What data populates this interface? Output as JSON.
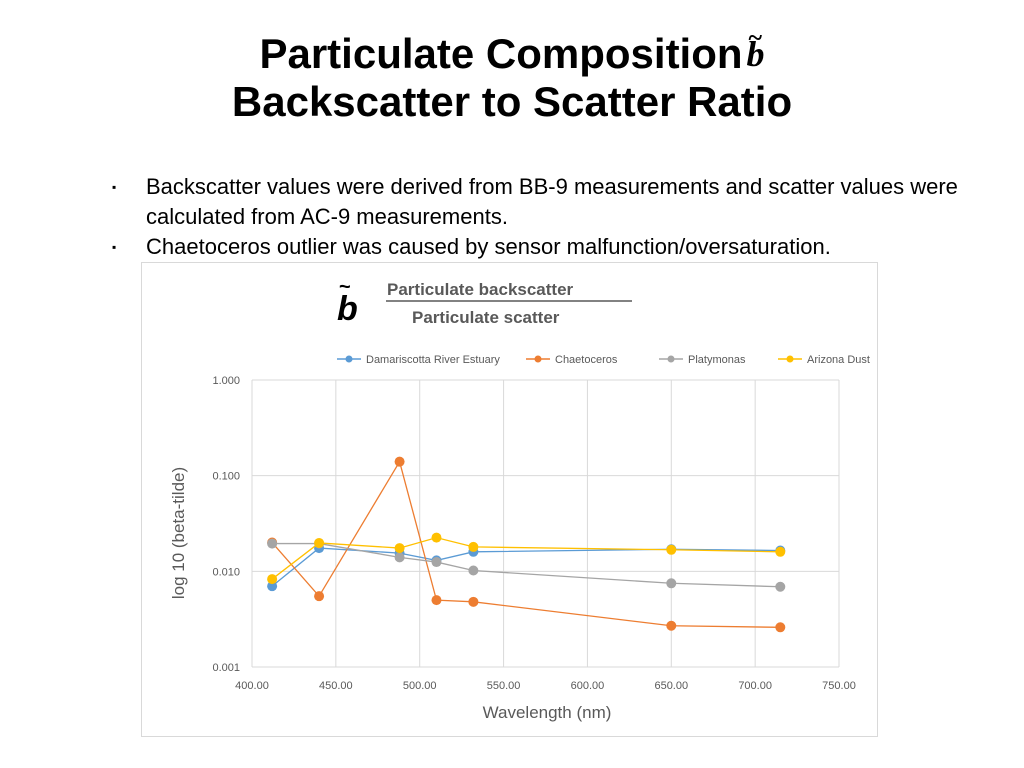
{
  "slide": {
    "title_line1": "Particulate Composition",
    "title_line2": "Backscatter to Scatter Ratio",
    "title_symbol": "b",
    "bullets": [
      "Backscatter values were derived from BB-9 measurements and scatter values were calculated from AC-9 measurements.",
      "Chaetoceros outlier was caused by sensor malfunction/oversaturation."
    ],
    "bullet_marker": "▪"
  },
  "chart_data": {
    "type": "line",
    "title_symbol": "b",
    "title_numerator": "Particulate  backscatter",
    "title_denominator": "Particulate  scatter",
    "xlabel": "Wavelength (nm)",
    "ylabel": "log 10 (beta-tilde)",
    "xlim": [
      400,
      750
    ],
    "ylim": [
      0.001,
      1
    ],
    "yscale": "log",
    "xticks": [
      "400.00",
      "450.00",
      "500.00",
      "550.00",
      "600.00",
      "650.00",
      "700.00",
      "750.00"
    ],
    "yticks": [
      "0.001",
      "0.010",
      "0.100",
      "1.000"
    ],
    "grid": true,
    "legend_position": "top",
    "series": [
      {
        "name": "Damariscotta River Estuary",
        "color": "#5b9bd5",
        "x": [
          412,
          440,
          488,
          510,
          532,
          650,
          715
        ],
        "y": [
          0.007,
          0.0175,
          0.0155,
          0.013,
          0.016,
          0.017,
          0.0165
        ]
      },
      {
        "name": "Chaetoceros",
        "color": "#ed7d31",
        "x": [
          412,
          440,
          488,
          510,
          532,
          650,
          715
        ],
        "y": [
          0.02,
          0.0055,
          0.14,
          0.005,
          0.0048,
          0.0027,
          0.0026
        ]
      },
      {
        "name": "Platymonas",
        "color": "#a5a5a5",
        "x": [
          412,
          440,
          488,
          510,
          532,
          650,
          715
        ],
        "y": [
          0.0195,
          0.0195,
          0.014,
          0.0125,
          0.0102,
          0.0075,
          0.0069
        ]
      },
      {
        "name": "Arizona Dust",
        "color": "#ffc000",
        "x": [
          412,
          440,
          488,
          510,
          532,
          650,
          715
        ],
        "y": [
          0.0083,
          0.0198,
          0.0175,
          0.0225,
          0.018,
          0.0168,
          0.016
        ]
      }
    ]
  }
}
